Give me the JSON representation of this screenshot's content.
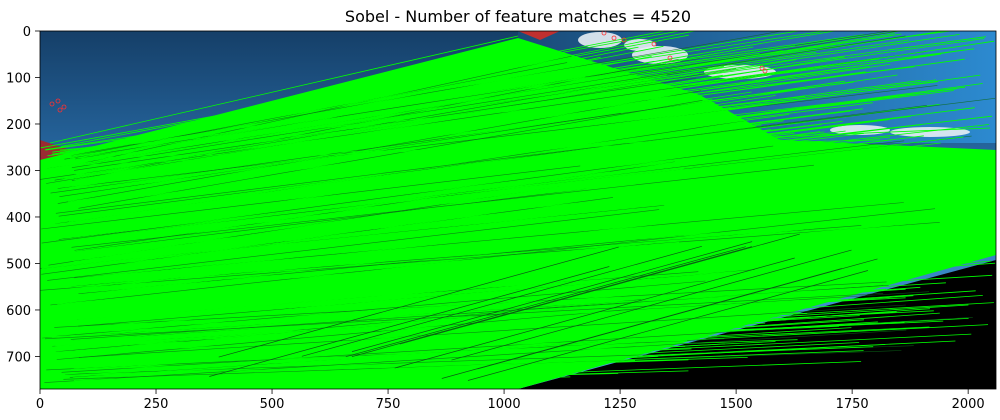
{
  "chart_data": {
    "type": "image",
    "title": "Sobel - Number of feature matches = 4520",
    "xlabel": "",
    "ylabel": "",
    "xlim": [
      0,
      2060
    ],
    "ylim": [
      770,
      0
    ],
    "x_ticks": [
      0,
      250,
      500,
      750,
      1000,
      1250,
      1500,
      1750,
      2000
    ],
    "y_ticks": [
      0,
      100,
      200,
      300,
      400,
      500,
      600,
      700
    ],
    "grid": false,
    "matches_count": 4520,
    "match_color": "#00ff00",
    "colors": {
      "sky_top": "#1d4f7a",
      "sky_bottom": "#3b8fd0",
      "match_lines": "#00ff00",
      "background_black": "#000000",
      "keypoint_red": "#ff3030"
    }
  }
}
